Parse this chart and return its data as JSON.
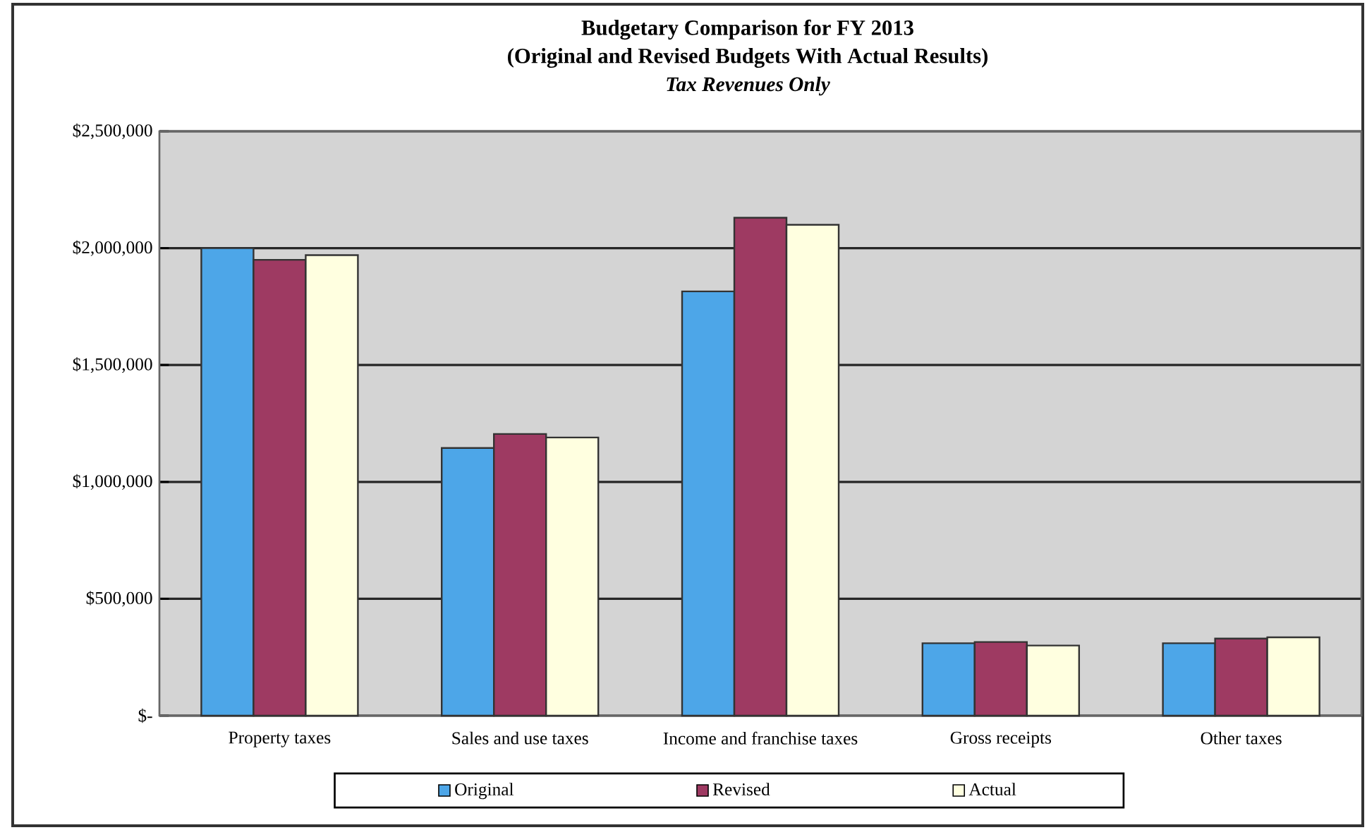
{
  "chart_data": {
    "type": "bar",
    "title": "Budgetary Comparison  for FY 2013",
    "subtitle": "(Original and Revised Budgets With Actual Results)",
    "annotations": [
      "Tax Revenues Only"
    ],
    "categories": [
      "Property taxes",
      "Sales and use taxes",
      "Income and franchise taxes",
      "Gross receipts",
      "Other taxes"
    ],
    "series": [
      {
        "name": "Original",
        "color": "#4da6e8",
        "values": [
          2000000,
          1145000,
          1815000,
          310000,
          310000
        ]
      },
      {
        "name": "Revised",
        "color": "#9e3a62",
        "values": [
          1950000,
          1205000,
          2130000,
          315000,
          330000
        ]
      },
      {
        "name": "Actual",
        "color": "#ffffe0",
        "values": [
          1970000,
          1190000,
          2100000,
          300000,
          335000
        ]
      }
    ],
    "ylim": [
      0,
      2500000
    ],
    "yticks": [
      {
        "value": 0,
        "label": "$-"
      },
      {
        "value": 500000,
        "label": "$500,000"
      },
      {
        "value": 1000000,
        "label": "$1,000,000"
      },
      {
        "value": 1500000,
        "label": "$1,500,000"
      },
      {
        "value": 2000000,
        "label": "$2,000,000"
      },
      {
        "value": 2500000,
        "label": "$2,500,000"
      }
    ],
    "grid": "y",
    "legend": "bottom"
  }
}
